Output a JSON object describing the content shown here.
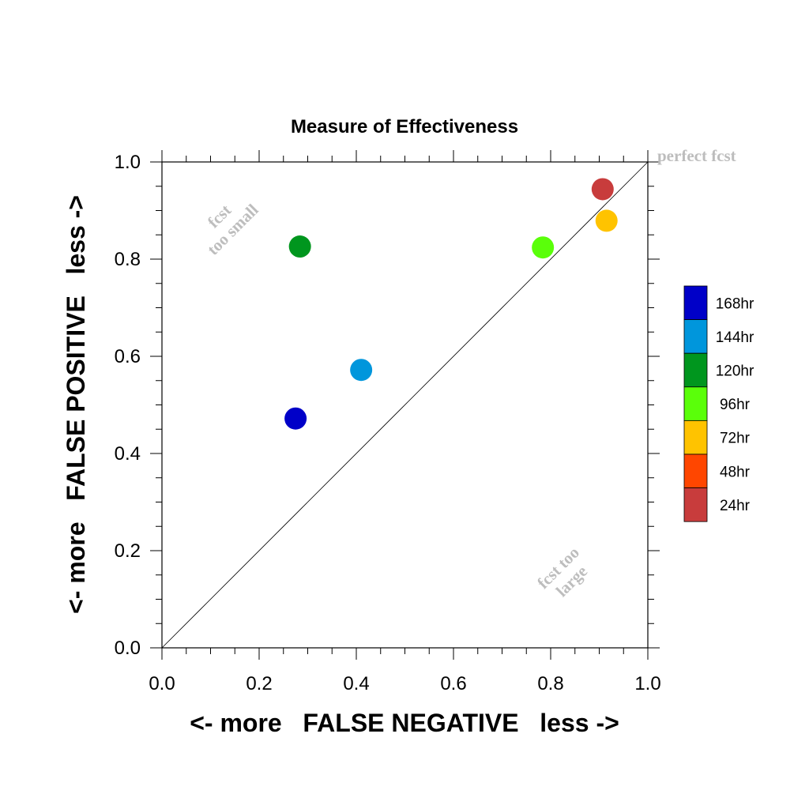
{
  "chart_data": {
    "type": "scatter",
    "title": "Measure of Effectiveness",
    "xlabel": "<- more   FALSE NEGATIVE   less ->",
    "ylabel": "<- more   FALSE POSITIVE   less ->",
    "xlim": [
      0,
      1
    ],
    "ylim": [
      0,
      1
    ],
    "xticks": [
      "0.0",
      "0.2",
      "0.4",
      "0.6",
      "0.8",
      "1.0"
    ],
    "yticks": [
      "0.0",
      "0.2",
      "0.4",
      "0.6",
      "0.8",
      "1.0"
    ],
    "diagonal": true,
    "annotations": {
      "perfect": "perfect fcst",
      "small_1": "fcst",
      "small_2": "too small",
      "large_1": "fcst too",
      "large_2": "large"
    },
    "points": [
      {
        "series": "168hr",
        "x": 0.275,
        "y": 0.472,
        "color": "#0000c8"
      },
      {
        "series": "144hr",
        "x": 0.41,
        "y": 0.572,
        "color": "#0096dc"
      },
      {
        "series": "120hr",
        "x": 0.284,
        "y": 0.826,
        "color": "#00961e"
      },
      {
        "series": "96hr",
        "x": 0.784,
        "y": 0.824,
        "color": "#5aff0a"
      },
      {
        "series": "72hr",
        "x": 0.915,
        "y": 0.879,
        "color": "#ffc300"
      },
      {
        "series": "24hr",
        "x": 0.907,
        "y": 0.944,
        "color": "#c83c3c"
      }
    ],
    "legend": {
      "position": "right",
      "entries": [
        {
          "label": "168hr",
          "color": "#0000c8"
        },
        {
          "label": "144hr",
          "color": "#0096dc"
        },
        {
          "label": "120hr",
          "color": "#00961e"
        },
        {
          "label": "96hr",
          "color": "#5aff0a"
        },
        {
          "label": "72hr",
          "color": "#ffc300"
        },
        {
          "label": "48hr",
          "color": "#ff4600"
        },
        {
          "label": "24hr",
          "color": "#c83c3c"
        }
      ]
    }
  }
}
